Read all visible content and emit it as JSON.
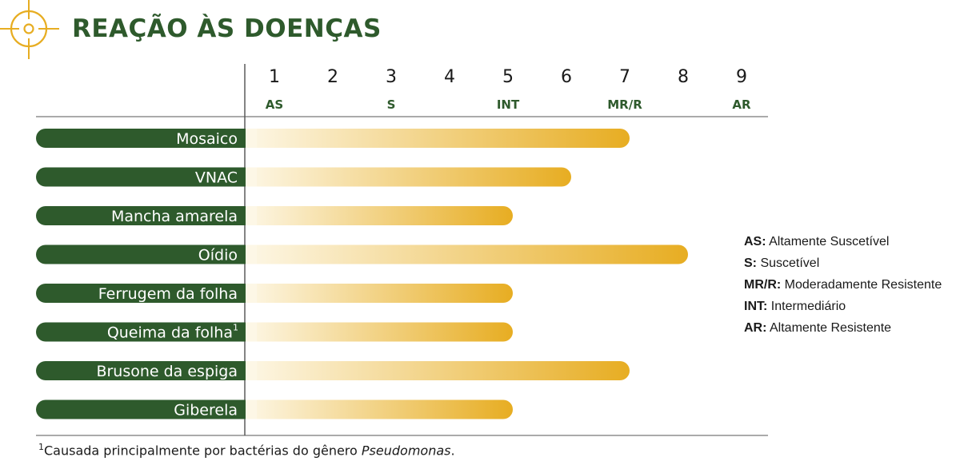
{
  "title": "REAÇÃO ÀS DOENÇAS",
  "colors": {
    "primary_green": "#2e5a2c",
    "gold": "#e7ad22",
    "gold_light": "#fdf7e6"
  },
  "icon": "crosshair-icon",
  "chart_data": {
    "type": "bar",
    "orientation": "horizontal",
    "x_ticks": [
      1,
      2,
      3,
      4,
      5,
      6,
      7,
      8,
      9
    ],
    "x_tick_abbr": [
      {
        "x": 1,
        "label": "AS"
      },
      {
        "x": 3,
        "label": "S"
      },
      {
        "x": 5,
        "label": "INT"
      },
      {
        "x": 7,
        "label": "MR/R"
      },
      {
        "x": 9,
        "label": "AR"
      }
    ],
    "xlim": [
      0,
      9
    ],
    "categories": [
      "Mosaico",
      "VNAC",
      "Mancha amarela",
      "Oídio",
      "Ferrugem da folha",
      "Queima da folha",
      "Brusone da espiga",
      "Giberela"
    ],
    "category_superscripts": [
      "",
      "",
      "",
      "",
      "",
      "1",
      "",
      ""
    ],
    "values": [
      7,
      6,
      5,
      8,
      5,
      5,
      7,
      5
    ]
  },
  "legend": [
    {
      "abbr": "AS:",
      "text": "Altamente Suscetível"
    },
    {
      "abbr": "S:",
      "text": "Suscetível"
    },
    {
      "abbr": "MR/R:",
      "text": "Moderadamente Resistente"
    },
    {
      "abbr": "INT:",
      "text": "Intermediário"
    },
    {
      "abbr": "AR:",
      "text": "Altamente Resistente"
    }
  ],
  "footnote": {
    "marker": "1",
    "text": "Causada principalmente por bactérias do gênero ",
    "italic": "Pseudomonas",
    "end": "."
  }
}
